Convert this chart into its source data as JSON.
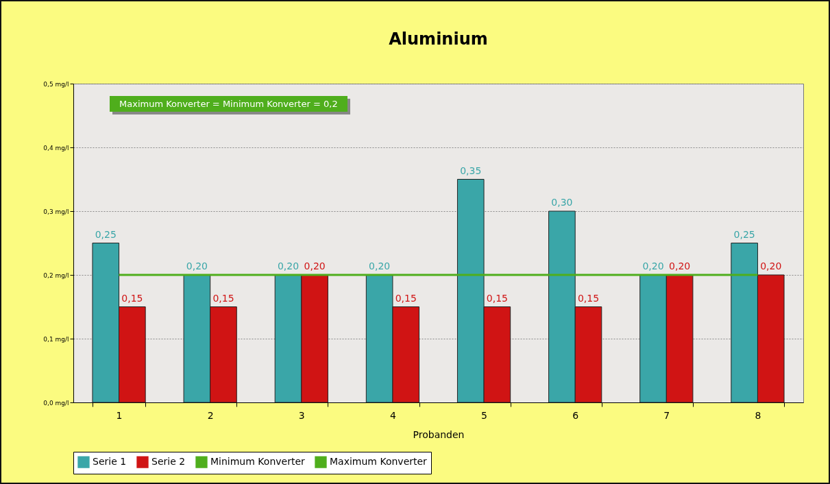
{
  "chart_data": {
    "type": "bar",
    "title": "Aluminium",
    "xlabel": "Probanden",
    "categories": [
      "1",
      "2",
      "3",
      "4",
      "5",
      "6",
      "7",
      "8"
    ],
    "series": [
      {
        "name": "Serie 1",
        "type": "bar",
        "color": "#3aa6a8",
        "values": [
          0.25,
          0.2,
          0.2,
          0.2,
          0.35,
          0.3,
          0.2,
          0.25
        ],
        "value_labels": [
          "0,25",
          "0,20",
          "0,20",
          "0,20",
          "0,35",
          "0,30",
          "0,20",
          "0,25"
        ]
      },
      {
        "name": "Serie 2",
        "type": "bar",
        "color": "#d01414",
        "values": [
          0.15,
          0.15,
          0.2,
          0.15,
          0.15,
          0.15,
          0.2,
          0.2
        ],
        "value_labels": [
          "0,15",
          "0,15",
          "0,20",
          "0,15",
          "0,15",
          "0,15",
          "0,20",
          "0,20"
        ]
      },
      {
        "name": "Minimum Konverter",
        "type": "line",
        "color": "#4fae1c",
        "values": [
          null,
          null,
          null,
          null,
          null,
          null,
          null,
          null
        ]
      },
      {
        "name": "Maximum Konverter",
        "type": "line",
        "color": "#4fae1c",
        "values": [
          0.2,
          0.2,
          0.2,
          0.2,
          0.2,
          0.2,
          0.2,
          0.2
        ]
      }
    ],
    "ylim": [
      0,
      0.5
    ],
    "yticks": [
      {
        "value": 0,
        "label": "0,0 mg/l"
      },
      {
        "value": 0.1,
        "label": "0,1 mg/l"
      },
      {
        "value": 0.2,
        "label": "0,2 mg/l"
      },
      {
        "value": 0.3,
        "label": "0,3 mg/l"
      },
      {
        "value": 0.4,
        "label": "0,4 mg/l"
      },
      {
        "value": 0.5,
        "label": "0,5 mg/l"
      }
    ],
    "grid": "y",
    "legend": "bottom",
    "annotations": [
      "Maximum Konverter = Minimum Konverter = 0,2"
    ]
  }
}
